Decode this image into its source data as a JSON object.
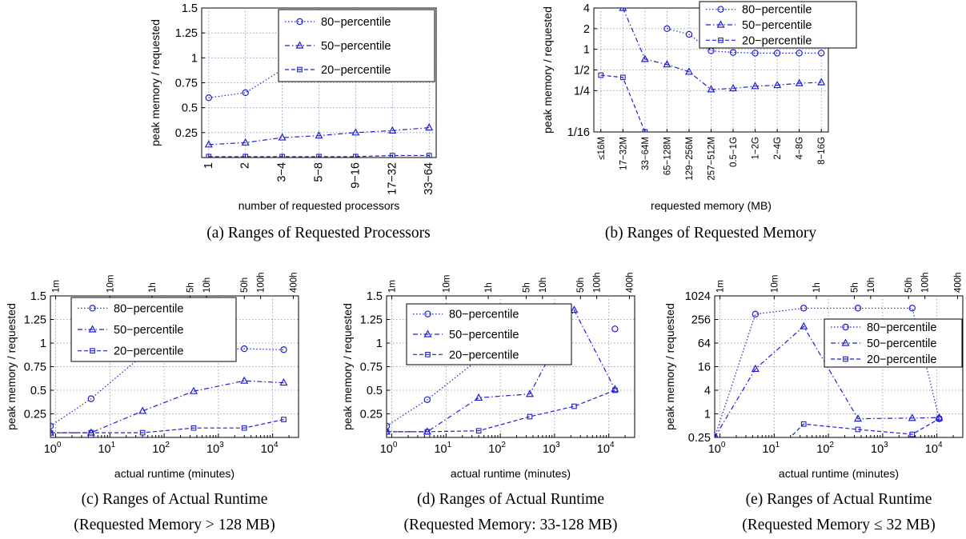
{
  "colors": {
    "series": "#1f1fd6",
    "grid": "#8a8aa8"
  },
  "legend_labels": [
    "80−percentile",
    "50−percentile",
    "20−percentile"
  ],
  "chart_data": [
    {
      "type": "line",
      "caption": "(a) Ranges of Requested Processors",
      "xlabel": "number of requested processors",
      "ylabel": "peak memory / requested",
      "categories": [
        "1",
        "2",
        "3−4",
        "5−8",
        "9−16",
        "17−32",
        "33−64"
      ],
      "ylim": [
        0,
        1.5
      ],
      "yticks": [
        0.25,
        0.5,
        0.75,
        1,
        1.25,
        1.5
      ],
      "ytick_labels": [
        "0.25",
        "0.5",
        "0.75",
        "1",
        "1.25",
        "1.5"
      ],
      "grid": true,
      "legend": "top-right",
      "series": [
        {
          "name": "80−percentile",
          "marker": "circle",
          "line": "dotted",
          "values": [
            0.6,
            0.65,
            0.88,
            0.83,
            0.89,
            0.9,
            0.91
          ]
        },
        {
          "name": "50−percentile",
          "marker": "triangle",
          "line": "dashdot",
          "values": [
            0.13,
            0.15,
            0.2,
            0.22,
            0.25,
            0.27,
            0.3
          ]
        },
        {
          "name": "20−percentile",
          "marker": "square",
          "line": "dashed",
          "values": [
            0.01,
            0.01,
            0.01,
            0.01,
            0.01,
            0.02,
            0.02
          ]
        }
      ]
    },
    {
      "type": "line",
      "caption": "(b) Ranges of Requested Memory",
      "xlabel": "requested memory (MB)",
      "ylabel": "peak memory / requested",
      "categories": [
        "≤16M",
        "17−32M",
        "33−64M",
        "65−128M",
        "129−256M",
        "257−512M",
        "0.5−1G",
        "1−2G",
        "2−4G",
        "4−8G",
        "8−16G"
      ],
      "yscale": "log2",
      "ylim": [
        0.0625,
        4
      ],
      "yticks": [
        0.0625,
        0.25,
        0.5,
        1,
        2,
        4
      ],
      "ytick_labels": [
        "1/16",
        "1/4",
        "1/2",
        "1",
        "2",
        "4"
      ],
      "grid": true,
      "legend": "top-right",
      "series": [
        {
          "name": "80−percentile",
          "marker": "circle",
          "line": "dotted",
          "values": [
            null,
            null,
            null,
            2.0,
            1.65,
            0.95,
            0.9,
            0.88,
            0.88,
            0.88,
            0.88
          ]
        },
        {
          "name": "50−percentile",
          "marker": "triangle",
          "line": "dashdot",
          "values": [
            null,
            4.0,
            0.72,
            0.6,
            0.47,
            0.26,
            0.27,
            0.29,
            0.3,
            0.32,
            0.33
          ]
        },
        {
          "name": "20−percentile",
          "marker": "square",
          "line": "dashed",
          "values": [
            0.42,
            0.39,
            0.0625,
            null,
            null,
            null,
            null,
            null,
            null,
            null,
            null
          ]
        }
      ]
    },
    {
      "type": "line",
      "caption": "(c) Ranges of Actual Runtime",
      "caption2": "(Requested Memory > 128 MB)",
      "xlabel": "actual runtime (minutes)",
      "ylabel": "peak memory / requested",
      "xscale": "log10",
      "xlim": [
        0.8,
        30000
      ],
      "xticks": [
        1,
        10,
        100,
        1000,
        10000
      ],
      "top_ticks": [
        "1m",
        "10m",
        "1h",
        "5h",
        "10h",
        "50h",
        "100h",
        "400h"
      ],
      "ylim": [
        0,
        1.5
      ],
      "yticks": [
        0.25,
        0.5,
        0.75,
        1,
        1.25,
        1.5
      ],
      "ytick_labels": [
        "0.25",
        "0.5",
        "0.75",
        "1",
        "1.25",
        "1.5"
      ],
      "grid": true,
      "legend": "top-left",
      "series": [
        {
          "name": "80−percentile",
          "marker": "circle",
          "line": "dotted",
          "x": [
            0.8,
            4.5,
            40,
            350,
            3000,
            16000
          ],
          "y": [
            0.12,
            0.41,
            0.87,
            0.92,
            0.94,
            0.93
          ]
        },
        {
          "name": "50−percentile",
          "marker": "triangle",
          "line": "dashdot",
          "x": [
            0.8,
            4.5,
            40,
            350,
            3000,
            16000
          ],
          "y": [
            0.05,
            0.05,
            0.28,
            0.49,
            0.6,
            0.58
          ]
        },
        {
          "name": "20−percentile",
          "marker": "square",
          "line": "dashed",
          "x": [
            0.8,
            4.5,
            40,
            350,
            3000,
            16000
          ],
          "y": [
            0.05,
            0.05,
            0.05,
            0.1,
            0.1,
            0.19
          ]
        }
      ]
    },
    {
      "type": "line",
      "caption": "(d) Ranges of Actual Runtime",
      "caption2": "(Requested Memory: 33-128 MB)",
      "xlabel": "actual runtime (minutes)",
      "ylabel": "peak memory / requested",
      "xscale": "log10",
      "xlim": [
        0.8,
        30000
      ],
      "xticks": [
        1,
        10,
        100,
        1000,
        10000
      ],
      "top_ticks": [
        "1m",
        "10m",
        "1h",
        "5h",
        "10h",
        "50h",
        "100h",
        "400h"
      ],
      "ylim": [
        0,
        1.5
      ],
      "yticks": [
        0.25,
        0.5,
        0.75,
        1,
        1.25,
        1.5
      ],
      "ytick_labels": [
        "0.25",
        "0.5",
        "0.75",
        "1",
        "1.25",
        "1.5"
      ],
      "grid": true,
      "legend": "top-left",
      "series": [
        {
          "name": "80−percentile",
          "marker": "circle",
          "line": "dotted",
          "x": [
            0.8,
            4.5,
            40,
            350,
            2300,
            13000
          ],
          "y": [
            0.12,
            0.4,
            0.83,
            null,
            null,
            1.15
          ]
        },
        {
          "name": "50−percentile",
          "marker": "triangle",
          "line": "dashdot",
          "x": [
            0.8,
            4.5,
            40,
            350,
            2300,
            13000
          ],
          "y": [
            0.06,
            0.06,
            0.42,
            0.46,
            1.35,
            0.51
          ]
        },
        {
          "name": "20−percentile",
          "marker": "square",
          "line": "dashed",
          "x": [
            0.8,
            4.5,
            40,
            350,
            2300,
            13000
          ],
          "y": [
            0.06,
            0.06,
            0.07,
            0.22,
            0.33,
            0.5
          ]
        }
      ]
    },
    {
      "type": "line",
      "caption": "(e) Ranges of Actual Runtime",
      "caption2": "(Requested Memory ≤ 32 MB)",
      "xlabel": "actual runtime (minutes)",
      "ylabel": "peak memory / requested",
      "xscale": "log10",
      "xlim": [
        0.8,
        30000
      ],
      "xticks": [
        1,
        10,
        100,
        1000,
        10000
      ],
      "top_ticks": [
        "1m",
        "10m",
        "1h",
        "5h",
        "10h",
        "50h",
        "100h",
        "400h"
      ],
      "yscale": "log2",
      "ylim": [
        0.25,
        1024
      ],
      "yticks": [
        0.25,
        1,
        4,
        16,
        64,
        256,
        1024
      ],
      "ytick_labels": [
        "0.25",
        "1",
        "4",
        "16",
        "64",
        "256",
        "1024"
      ],
      "grid": true,
      "legend": "right",
      "series": [
        {
          "name": "80−percentile",
          "marker": "circle",
          "line": "dotted",
          "x": [
            0.8,
            4.5,
            35,
            350,
            3500,
            11000
          ],
          "y": [
            0.25,
            350,
            500,
            500,
            500,
            0.75
          ]
        },
        {
          "name": "50−percentile",
          "marker": "triangle",
          "line": "dashdot",
          "x": [
            0.8,
            4.5,
            35,
            350,
            3500,
            11000
          ],
          "y": [
            0.25,
            14,
            170,
            0.75,
            0.78,
            0.8
          ]
        },
        {
          "name": "20−percentile",
          "marker": "square",
          "line": "dashed",
          "x": [
            10,
            35,
            350,
            3500,
            11000
          ],
          "y": [
            0.1,
            0.55,
            0.4,
            0.3,
            0.75
          ]
        }
      ]
    }
  ]
}
